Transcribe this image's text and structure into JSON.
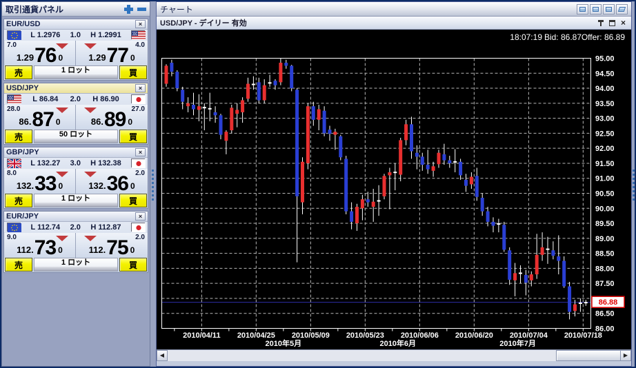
{
  "icons": {
    "close": "×",
    "scroll_left": "◀",
    "scroll_right": "▶"
  },
  "left_panel": {
    "title": "取引通貨パネル",
    "sell_label": "売",
    "buy_label": "買",
    "tiles": [
      {
        "pair": "EUR/USD",
        "base_flag": "eu",
        "quote_flag": "us",
        "low": "L 1.2976",
        "spread": "1.0",
        "high": "H 1.2991",
        "bid": {
          "change": "7.0",
          "stem": "1.29",
          "big": "76",
          "pip": "0"
        },
        "ask": {
          "change": "4.0",
          "stem": "1.29",
          "big": "77",
          "pip": "0"
        },
        "lot": "1 ロット",
        "highlight": false
      },
      {
        "pair": "USD/JPY",
        "base_flag": "us",
        "quote_flag": "jp",
        "low": "L 86.84",
        "spread": "2.0",
        "high": "H 86.90",
        "bid": {
          "change": "28.0",
          "stem": "86.",
          "big": "87",
          "pip": "0"
        },
        "ask": {
          "change": "27.0",
          "stem": "86.",
          "big": "89",
          "pip": "0"
        },
        "lot": "50 ロット",
        "highlight": true
      },
      {
        "pair": "GBP/JPY",
        "base_flag": "gb",
        "quote_flag": "jp",
        "low": "L 132.27",
        "spread": "3.0",
        "high": "H 132.38",
        "bid": {
          "change": "8.0",
          "stem": "132.",
          "big": "33",
          "pip": "0"
        },
        "ask": {
          "change": "2.0",
          "stem": "132.",
          "big": "36",
          "pip": "0"
        },
        "lot": "1 ロット",
        "highlight": false
      },
      {
        "pair": "EUR/JPY",
        "base_flag": "eu",
        "quote_flag": "jp",
        "low": "L 112.74",
        "spread": "2.0",
        "high": "H 112.87",
        "bid": {
          "change": "9.0",
          "stem": "112.",
          "big": "73",
          "pip": "0"
        },
        "ask": {
          "change": "2.0",
          "stem": "112.",
          "big": "75",
          "pip": "0"
        },
        "lot": "1 ロット",
        "highlight": false
      }
    ]
  },
  "chart_panel": {
    "header": "チャート",
    "window_title": "USD/JPY - デイリー 有効",
    "status": {
      "time": "18:07:19",
      "bid": "Bid: 86.87",
      "offer": "Offer: 86.89"
    },
    "current_price": "86.88"
  },
  "chart_data": {
    "type": "candlestick",
    "title": "USD/JPY デイリー (daily)",
    "pair": "USD/JPY",
    "timeframe": "daily",
    "y_axis": {
      "min": 86.0,
      "max": 95.0,
      "step": 0.5,
      "label_skipped_for_price_box": "87.00"
    },
    "bid_line": 86.87,
    "current_price": 86.88,
    "grid": true,
    "colors": {
      "up": "#e82f2f",
      "down": "#2a3fd4",
      "doji": "#ffffff",
      "background": "#000000",
      "grid": "#b8b8b8",
      "bid_line": "#2d2da8",
      "price_box_border": "#e00000"
    },
    "x_ticks": [
      {
        "label": "2010/04/11",
        "after": 7
      },
      {
        "label": "2010/04/25",
        "after": 17
      },
      {
        "label": "2010/05/09",
        "after": 27
      },
      {
        "label": "2010/05/23",
        "after": 37
      },
      {
        "label": "2010/06/06",
        "after": 47
      },
      {
        "label": "2010/06/20",
        "after": 57
      },
      {
        "label": "2010/07/04",
        "after": 67
      },
      {
        "label": "2010/07/18",
        "after": 77
      }
    ],
    "month_ticks": [
      {
        "label": "2010年5月",
        "after": 22
      },
      {
        "label": "2010年6月",
        "after": 43
      },
      {
        "label": "2010年7月",
        "after": 65
      }
    ],
    "candles": [
      [
        "2010/04/01",
        94.15,
        94.8,
        94.05,
        94.75
      ],
      [
        "2010/04/02",
        94.85,
        94.95,
        94.4,
        94.55
      ],
      [
        "2010/04/05",
        94.55,
        94.6,
        93.9,
        94.0
      ],
      [
        "2010/04/06",
        93.95,
        94.05,
        93.3,
        93.55
      ],
      [
        "2010/04/07",
        93.4,
        93.7,
        93.2,
        93.5
      ],
      [
        "2010/04/08",
        93.45,
        93.85,
        93.1,
        93.3
      ],
      [
        "2010/04/09",
        93.28,
        93.8,
        92.9,
        93.4
      ],
      [
        "2010/04/12",
        93.38,
        93.5,
        92.6,
        93.33
      ],
      [
        "2010/04/13",
        93.32,
        93.85,
        92.9,
        93.34
      ],
      [
        "2010/04/14",
        93.2,
        93.4,
        92.85,
        93.1
      ],
      [
        "2010/04/15",
        93.1,
        93.15,
        92.3,
        92.45
      ],
      [
        "2010/04/16",
        92.25,
        92.6,
        91.8,
        92.55
      ],
      [
        "2010/04/19",
        92.6,
        93.45,
        92.5,
        93.35
      ],
      [
        "2010/04/20",
        93.15,
        93.5,
        92.7,
        93.28
      ],
      [
        "2010/04/21",
        93.2,
        93.7,
        92.85,
        93.6
      ],
      [
        "2010/04/22",
        93.65,
        94.35,
        93.55,
        94.15
      ],
      [
        "2010/04/23",
        94.12,
        94.4,
        93.95,
        94.15
      ],
      [
        "2010/04/26",
        94.2,
        94.35,
        93.5,
        93.6
      ],
      [
        "2010/04/27",
        93.6,
        94.3,
        93.5,
        94.1
      ],
      [
        "2010/04/28",
        94.18,
        94.45,
        94.05,
        94.2
      ],
      [
        "2010/04/29",
        94.25,
        94.3,
        93.95,
        94.1
      ],
      [
        "2010/04/30",
        94.2,
        94.99,
        94.1,
        94.85
      ],
      [
        "2010/05/03",
        94.85,
        94.95,
        94.65,
        94.75
      ],
      [
        "2010/05/04",
        94.75,
        94.78,
        93.9,
        94.0
      ],
      [
        "2010/05/05",
        93.95,
        94.0,
        88.2,
        90.4
      ],
      [
        "2010/05/06",
        90.2,
        91.7,
        89.8,
        91.55
      ],
      [
        "2010/05/07",
        91.5,
        93.5,
        91.3,
        93.4
      ],
      [
        "2010/05/10",
        93.4,
        93.55,
        92.75,
        92.95
      ],
      [
        "2010/05/11",
        92.95,
        93.45,
        92.6,
        93.3
      ],
      [
        "2010/05/12",
        93.25,
        93.4,
        92.4,
        92.5
      ],
      [
        "2010/05/13",
        92.62,
        92.75,
        92.25,
        92.48
      ],
      [
        "2010/05/14",
        92.45,
        92.65,
        91.95,
        92.55
      ],
      [
        "2010/05/17",
        92.4,
        92.45,
        91.6,
        91.7
      ],
      [
        "2010/05/18",
        91.65,
        91.75,
        89.8,
        89.9
      ],
      [
        "2010/05/19",
        89.9,
        90.2,
        89.3,
        89.55
      ],
      [
        "2010/05/20",
        89.5,
        90.15,
        89.25,
        90.05
      ],
      [
        "2010/05/21",
        90.0,
        90.45,
        89.6,
        90.3
      ],
      [
        "2010/05/24",
        90.3,
        90.55,
        90.05,
        90.2
      ],
      [
        "2010/05/25",
        90.05,
        90.65,
        89.55,
        90.22
      ],
      [
        "2010/05/26",
        90.25,
        90.77,
        89.75,
        90.27
      ],
      [
        "2010/05/27",
        90.4,
        91.15,
        90.3,
        91.08
      ],
      [
        "2010/05/28",
        91.1,
        91.35,
        89.97,
        91.2
      ],
      [
        "2010/05/31",
        91.2,
        91.5,
        90.6,
        91.22
      ],
      [
        "2010/06/01",
        91.12,
        92.35,
        90.9,
        92.27
      ],
      [
        "2010/06/02",
        92.27,
        92.95,
        92.1,
        92.8
      ],
      [
        "2010/06/03",
        92.8,
        93.05,
        91.65,
        91.9
      ],
      [
        "2010/06/04",
        91.85,
        92.1,
        91.3,
        91.72
      ],
      [
        "2010/06/07",
        91.72,
        91.85,
        91.25,
        91.45
      ],
      [
        "2010/06/08",
        91.45,
        91.95,
        91.15,
        91.3
      ],
      [
        "2010/06/09",
        91.25,
        91.55,
        91.05,
        91.4
      ],
      [
        "2010/06/10",
        91.47,
        91.95,
        91.35,
        91.85
      ],
      [
        "2010/06/11",
        91.8,
        92.15,
        91.45,
        91.6
      ],
      [
        "2010/06/14",
        91.6,
        91.75,
        91.35,
        91.5
      ],
      [
        "2010/06/15",
        91.55,
        91.97,
        91.2,
        91.57
      ],
      [
        "2010/06/16",
        91.55,
        91.65,
        90.95,
        91.1
      ],
      [
        "2010/06/17",
        90.95,
        91.15,
        90.55,
        90.75
      ],
      [
        "2010/06/18",
        90.8,
        91.2,
        90.65,
        91.05
      ],
      [
        "2010/06/21",
        91.08,
        91.35,
        90.25,
        90.38
      ],
      [
        "2010/06/22",
        90.35,
        90.5,
        89.75,
        89.9
      ],
      [
        "2010/06/23",
        89.9,
        90.05,
        89.4,
        89.55
      ],
      [
        "2010/06/24",
        89.55,
        89.7,
        89.2,
        89.42
      ],
      [
        "2010/06/25",
        89.48,
        89.65,
        89.2,
        89.5
      ],
      [
        "2010/06/28",
        89.45,
        89.55,
        88.55,
        88.62
      ],
      [
        "2010/06/29",
        88.6,
        88.7,
        87.45,
        87.62
      ],
      [
        "2010/06/30",
        87.6,
        88.18,
        87.07,
        87.84
      ],
      [
        "2010/07/01",
        87.85,
        88.1,
        87.5,
        87.86
      ],
      [
        "2010/07/02",
        87.78,
        87.95,
        87.1,
        87.52
      ],
      [
        "2010/07/05",
        87.6,
        87.9,
        87.4,
        87.8
      ],
      [
        "2010/07/06",
        87.8,
        89.15,
        87.65,
        88.45
      ],
      [
        "2010/07/07",
        88.45,
        89.2,
        88.25,
        88.7
      ],
      [
        "2010/07/08",
        88.64,
        89.05,
        88.15,
        88.66
      ],
      [
        "2010/07/09",
        88.6,
        88.9,
        88.3,
        88.42
      ],
      [
        "2010/07/12",
        88.4,
        89.1,
        87.8,
        88.25
      ],
      [
        "2010/07/13",
        88.25,
        88.4,
        87.35,
        87.4
      ],
      [
        "2010/07/14",
        87.4,
        87.55,
        86.3,
        86.55
      ],
      [
        "2010/07/15",
        86.58,
        86.95,
        86.4,
        86.8
      ],
      [
        "2010/07/16",
        86.82,
        87.0,
        86.55,
        86.86
      ],
      [
        "2010/07/19",
        86.85,
        86.95,
        86.75,
        86.88
      ]
    ]
  }
}
